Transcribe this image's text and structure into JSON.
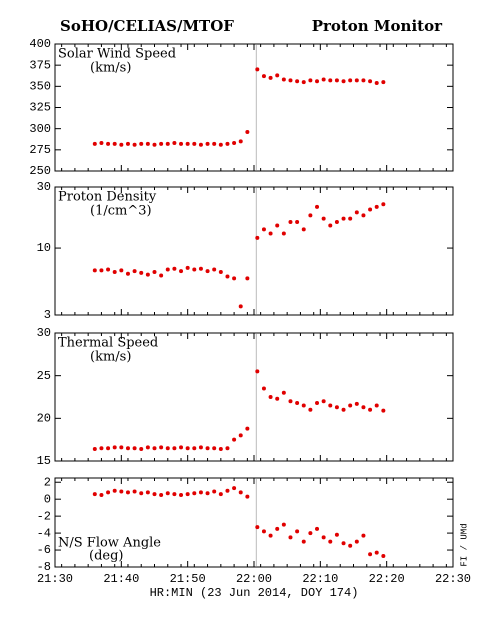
{
  "header": {
    "left": "SoHO/CELIAS/MTOF",
    "right": "Proton Monitor"
  },
  "side_note": "FI / UMd",
  "x_axis": {
    "label": "HR:MIN (23 Jun 2014, DOY 174)",
    "xlim": [
      0,
      60
    ],
    "xticks": [
      {
        "value": 0,
        "label": "21:30"
      },
      {
        "value": 10,
        "label": "21:40"
      },
      {
        "value": 20,
        "label": "21:50"
      },
      {
        "value": 30,
        "label": "22:00"
      },
      {
        "value": 40,
        "label": "22:10"
      },
      {
        "value": 50,
        "label": "22:20"
      },
      {
        "value": 60,
        "label": "22:30"
      }
    ]
  },
  "chart_data": [
    {
      "type": "scatter",
      "title": "Solar Wind Speed",
      "unit": "(km/s)",
      "color": "#e00000",
      "x": [
        6,
        7,
        8,
        9,
        10,
        11,
        12,
        13,
        14,
        15,
        16,
        17,
        18,
        19,
        20,
        21,
        22,
        23,
        24,
        25,
        26,
        27,
        28,
        29,
        30.5,
        31.5,
        32.5,
        33.5,
        34.5,
        35.5,
        36.5,
        37.5,
        38.5,
        39.5,
        40.5,
        41.5,
        42.5,
        43.5,
        44.5,
        45.5,
        46.5,
        47.5,
        48.5,
        49.5
      ],
      "values": [
        282,
        283,
        282,
        282,
        281,
        282,
        281,
        282,
        282,
        281,
        282,
        282,
        283,
        282,
        282,
        282,
        281,
        282,
        282,
        281,
        282,
        283,
        285,
        296,
        370,
        362,
        360,
        363,
        358,
        357,
        356,
        355,
        357,
        356,
        358,
        357,
        357,
        356,
        357,
        357,
        357,
        356,
        354,
        355
      ],
      "ylim": [
        250,
        400
      ],
      "yticks": [
        250,
        275,
        300,
        325,
        350,
        375,
        400
      ]
    },
    {
      "type": "scatter",
      "title": "Proton Density",
      "unit": "(1/cm^3)",
      "color": "#e00000",
      "log": true,
      "x": [
        6,
        7,
        8,
        9,
        10,
        11,
        12,
        13,
        14,
        15,
        16,
        17,
        18,
        19,
        20,
        21,
        22,
        23,
        24,
        25,
        26,
        27,
        28,
        29,
        30.5,
        31.5,
        32.5,
        33.5,
        34.5,
        35.5,
        36.5,
        37.5,
        38.5,
        39.5,
        40.5,
        41.5,
        42.5,
        43.5,
        44.5,
        45.5,
        46.5,
        47.5,
        48.5,
        49.5
      ],
      "values": [
        6.7,
        6.7,
        6.8,
        6.5,
        6.7,
        6.3,
        6.6,
        6.4,
        6.2,
        6.5,
        6.1,
        6.8,
        6.9,
        6.6,
        7.0,
        6.8,
        6.9,
        6.6,
        6.8,
        6.5,
        6.0,
        5.8,
        3.5,
        5.8,
        12,
        14,
        13,
        15,
        13,
        16,
        16,
        14,
        18,
        21,
        17,
        15,
        16,
        17,
        17,
        19,
        18,
        20,
        21,
        22
      ],
      "ylim": [
        3,
        30
      ],
      "yticks": [
        3,
        10,
        30
      ]
    },
    {
      "type": "scatter",
      "title": "Thermal Speed",
      "unit": "(km/s)",
      "color": "#e00000",
      "x": [
        6,
        7,
        8,
        9,
        10,
        11,
        12,
        13,
        14,
        15,
        16,
        17,
        18,
        19,
        20,
        21,
        22,
        23,
        24,
        25,
        26,
        27,
        28,
        29,
        30.5,
        31.5,
        32.5,
        33.5,
        34.5,
        35.5,
        36.5,
        37.5,
        38.5,
        39.5,
        40.5,
        41.5,
        42.5,
        43.5,
        44.5,
        45.5,
        46.5,
        47.5,
        48.5,
        49.5
      ],
      "values": [
        16.4,
        16.5,
        16.5,
        16.6,
        16.6,
        16.5,
        16.5,
        16.4,
        16.6,
        16.5,
        16.6,
        16.5,
        16.5,
        16.6,
        16.5,
        16.5,
        16.6,
        16.5,
        16.5,
        16.4,
        16.5,
        17.5,
        18.0,
        18.8,
        25.5,
        23.5,
        22.5,
        22.3,
        23.0,
        22.0,
        21.8,
        21.5,
        21.0,
        21.8,
        22.0,
        21.5,
        21.3,
        21.0,
        21.5,
        21.7,
        21.3,
        21.0,
        21.5,
        20.9
      ],
      "ylim": [
        15,
        30
      ],
      "yticks": [
        15,
        20,
        25,
        30
      ]
    },
    {
      "type": "scatter",
      "title": "N/S Flow Angle",
      "unit": "(deg)",
      "color": "#e00000",
      "x": [
        6,
        7,
        8,
        9,
        10,
        11,
        12,
        13,
        14,
        15,
        16,
        17,
        18,
        19,
        20,
        21,
        22,
        23,
        24,
        25,
        26,
        27,
        28,
        29,
        30.5,
        31.5,
        32.5,
        33.5,
        34.5,
        35.5,
        36.5,
        37.5,
        38.5,
        39.5,
        40.5,
        41.5,
        42.5,
        43.5,
        44.5,
        45.5,
        46.5,
        47.5,
        48.5,
        49.5
      ],
      "values": [
        0.6,
        0.5,
        0.8,
        1.0,
        0.9,
        0.8,
        0.9,
        0.7,
        0.8,
        0.6,
        0.5,
        0.7,
        0.6,
        0.5,
        0.6,
        0.7,
        0.8,
        0.7,
        0.9,
        0.6,
        1.0,
        1.3,
        0.8,
        0.3,
        -3.3,
        -3.8,
        -4.3,
        -3.5,
        -3.0,
        -4.5,
        -3.8,
        -5.0,
        -4.0,
        -3.5,
        -4.5,
        -5.0,
        -4.2,
        -5.2,
        -5.5,
        -5.0,
        -4.3,
        -6.5,
        -6.3,
        -6.7
      ],
      "ylim": [
        -8,
        2.5
      ],
      "yticks": [
        -8,
        -6,
        -4,
        -2,
        0,
        2
      ]
    }
  ]
}
